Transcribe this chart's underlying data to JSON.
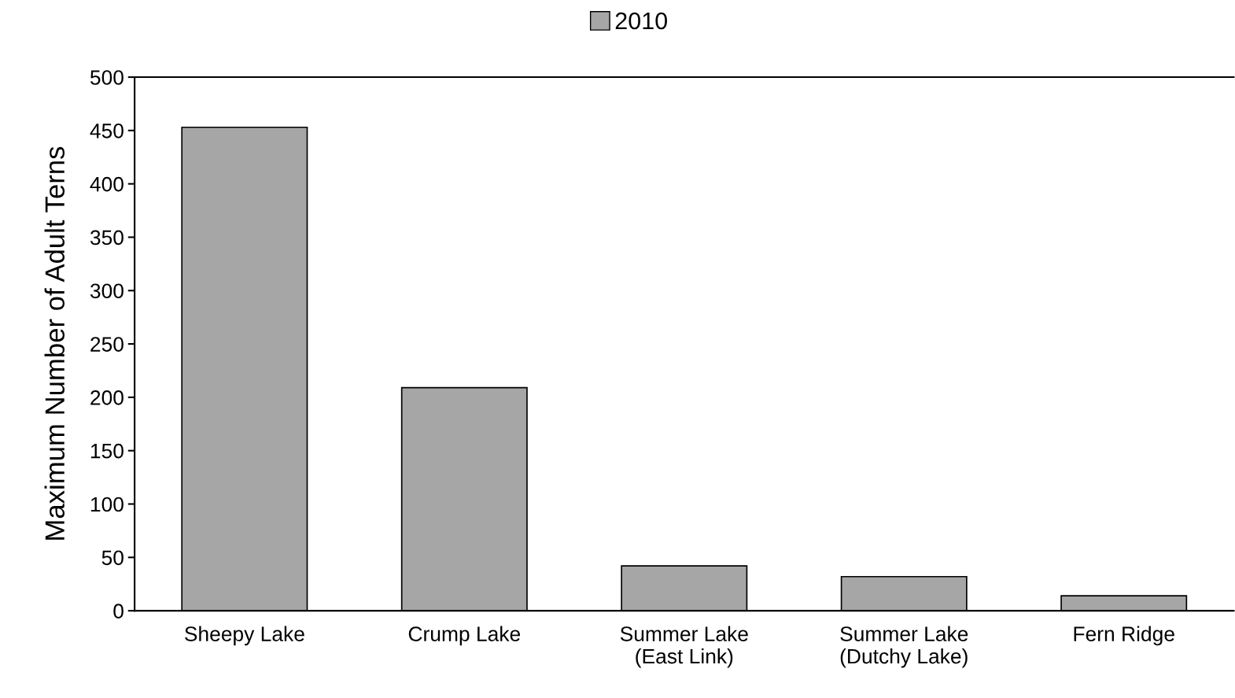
{
  "chart_data": {
    "type": "bar",
    "ylabel": "Maximum Number of Adult Terns",
    "categories": [
      "Sheepy Lake",
      "Crump Lake",
      "Summer Lake\n(East Link)",
      "Summer Lake\n(Dutchy Lake)",
      "Fern Ridge"
    ],
    "series": [
      {
        "name": "2010",
        "color": "#a6a6a6",
        "values": [
          453,
          209,
          42,
          32,
          14
        ]
      }
    ],
    "ylim": [
      0,
      500
    ],
    "yticks": [
      0,
      50,
      100,
      150,
      200,
      250,
      300,
      350,
      400,
      450,
      500
    ],
    "grid": false,
    "legend": "top"
  }
}
